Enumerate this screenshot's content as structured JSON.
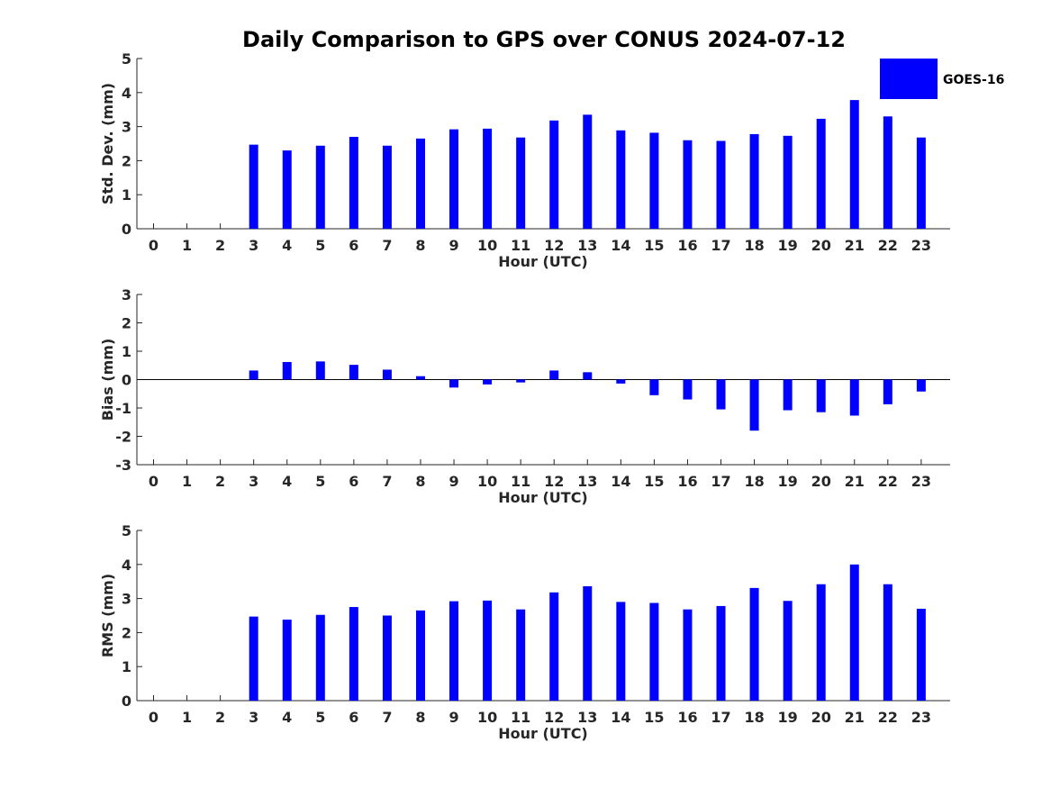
{
  "chart_data": {
    "title": "Daily Comparison to GPS over CONUS 2024-07-12",
    "type": "bar",
    "legend": {
      "entries": [
        "GOES-16"
      ],
      "placement": "top-right"
    },
    "bar_color": "#0000FF",
    "panels": [
      {
        "name": "std",
        "type": "bar",
        "xlabel": "Hour (UTC)",
        "ylabel": "Std. Dev. (mm)",
        "ylim": [
          0,
          5
        ],
        "yticks": [
          0,
          1,
          2,
          3,
          4,
          5
        ],
        "categories": [
          "0",
          "1",
          "2",
          "3",
          "4",
          "5",
          "6",
          "7",
          "8",
          "9",
          "10",
          "11",
          "12",
          "13",
          "14",
          "15",
          "16",
          "17",
          "18",
          "19",
          "20",
          "21",
          "22",
          "23"
        ],
        "series": [
          {
            "name": "GOES-16",
            "values": [
              null,
              null,
              null,
              2.47,
              2.3,
              2.44,
              2.7,
              2.44,
              2.65,
              2.92,
              2.94,
              2.68,
              3.18,
              3.35,
              2.89,
              2.82,
              2.6,
              2.58,
              2.78,
              2.73,
              3.23,
              3.78,
              3.3,
              2.68
            ]
          }
        ]
      },
      {
        "name": "bias",
        "type": "bar",
        "xlabel": "Hour (UTC)",
        "ylabel": "Bias (mm)",
        "ylim": [
          -3,
          3
        ],
        "yticks": [
          -3,
          -2,
          -1,
          0,
          1,
          2,
          3
        ],
        "categories": [
          "0",
          "1",
          "2",
          "3",
          "4",
          "5",
          "6",
          "7",
          "8",
          "9",
          "10",
          "11",
          "12",
          "13",
          "14",
          "15",
          "16",
          "17",
          "18",
          "19",
          "20",
          "21",
          "22",
          "23"
        ],
        "series": [
          {
            "name": "GOES-16",
            "values": [
              null,
              null,
              null,
              0.32,
              0.62,
              0.64,
              0.52,
              0.35,
              0.12,
              -0.28,
              -0.17,
              -0.1,
              0.32,
              0.26,
              -0.14,
              -0.55,
              -0.7,
              -1.05,
              -1.8,
              -1.08,
              -1.15,
              -1.27,
              -0.87,
              -0.42
            ]
          }
        ]
      },
      {
        "name": "rms",
        "type": "bar",
        "xlabel": "Hour (UTC)",
        "ylabel": "RMS (mm)",
        "ylim": [
          0,
          5
        ],
        "yticks": [
          0,
          1,
          2,
          3,
          4,
          5
        ],
        "categories": [
          "0",
          "1",
          "2",
          "3",
          "4",
          "5",
          "6",
          "7",
          "8",
          "9",
          "10",
          "11",
          "12",
          "13",
          "14",
          "15",
          "16",
          "17",
          "18",
          "19",
          "20",
          "21",
          "22",
          "23"
        ],
        "series": [
          {
            "name": "GOES-16",
            "values": [
              null,
              null,
              null,
              2.47,
              2.38,
              2.52,
              2.75,
              2.5,
              2.65,
              2.92,
              2.94,
              2.68,
              3.18,
              3.36,
              2.9,
              2.87,
              2.68,
              2.78,
              3.31,
              2.93,
              3.42,
              4.0,
              3.42,
              2.7
            ]
          }
        ]
      }
    ]
  }
}
